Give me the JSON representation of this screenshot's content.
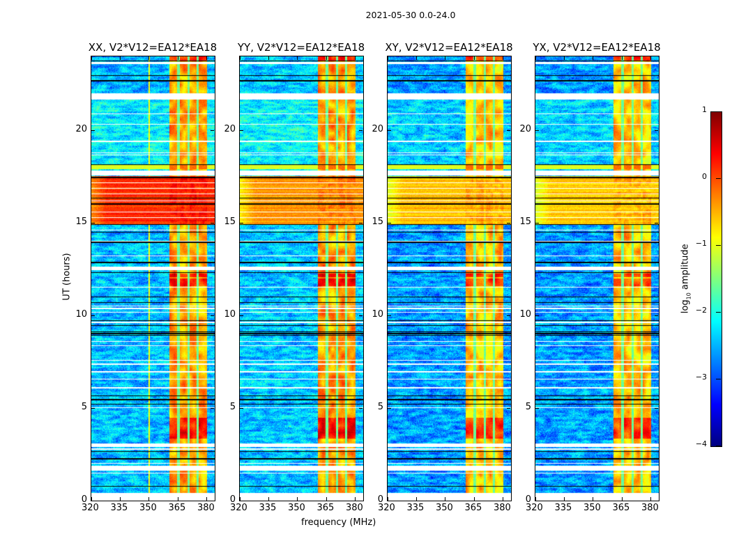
{
  "chart_data": {
    "type": "heatmap",
    "title": "2021-05-30 0.0-24.0",
    "xlabel": "frequency (MHz)",
    "ylabel": "UT (hours)",
    "xlim": [
      320,
      384
    ],
    "ylim": [
      0,
      24
    ],
    "xticks": [
      320,
      335,
      350,
      365,
      380
    ],
    "yticks": [
      0,
      5,
      10,
      15,
      20
    ],
    "panels": [
      {
        "title": "XX, V2*V12=EA12*EA18",
        "background_level": -2.45,
        "rfi_level": -0.45,
        "hot_band_level": 0.15
      },
      {
        "title": "YY, V2*V12=EA12*EA18",
        "background_level": -2.4,
        "rfi_level": -0.4,
        "hot_band_level": -0.35
      },
      {
        "title": "XY, V2*V12=EA12*EA18",
        "background_level": -2.6,
        "rfi_level": -0.6,
        "hot_band_level": -0.55
      },
      {
        "title": "YX, V2*V12=EA12*EA18",
        "background_level": -2.6,
        "rfi_level": -0.6,
        "hot_band_level": -0.6
      }
    ],
    "features": {
      "rfi_band_mhz": [
        360.5,
        380
      ],
      "rfi_gap_mhz": [
        365.2,
        370.3,
        375.3
      ],
      "xx_line_mhz": 350,
      "hot_band_hours": [
        14.94,
        17.53
      ],
      "transition_band_hours": [
        17.9,
        18.15
      ],
      "strong_rfi_hours": [
        [
          23.77,
          24
        ],
        [
          12.08,
          12.27
        ],
        [
          11.6,
          12.0
        ],
        [
          3.35,
          4.48
        ]
      ],
      "flagged_hours": [
        [
          0,
          0.4
        ],
        [
          1.62,
          1.87
        ],
        [
          2.91,
          3.07
        ],
        [
          12.44,
          12.63
        ],
        [
          17.57,
          17.83
        ],
        [
          21.68,
          22.0
        ],
        [
          23.6,
          23.7
        ]
      ],
      "white_lines_hours": [
        1.49,
        2.03,
        2.8,
        5.04,
        6.11,
        6.58,
        6.98,
        7.39,
        7.61,
        8.4,
        8.62,
        10.18,
        10.4,
        10.52,
        9.65,
        11.56,
        13.23,
        14.04,
        14.63,
        15.3,
        15.6,
        16.2,
        16.6,
        16.9,
        17.2,
        18.71,
        18.81,
        19.43,
        20.34,
        20.93
      ],
      "black_lines_hours": [
        0.78,
        2.28,
        2.68,
        5.23,
        5.48,
        5.67,
        8.95,
        9.05,
        9.14,
        9.49,
        9.74,
        10.71,
        11.02,
        12.34,
        12.88,
        13.97,
        14.51,
        14.94,
        16.05,
        16.37,
        17.48,
        18.18,
        22.7,
        22.98,
        23.77
      ]
    },
    "colorbar": {
      "label_prefix": "log",
      "label_sub": "10",
      "label_suffix": " amplitude",
      "range": [
        -4,
        1
      ],
      "ticks": [
        "1",
        "0",
        "−1",
        "−2",
        "−3",
        "−4"
      ],
      "colormap": "jet"
    }
  }
}
